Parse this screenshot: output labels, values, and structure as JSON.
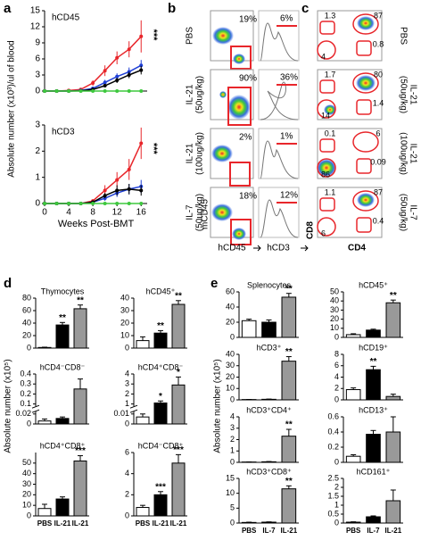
{
  "panel_labels": [
    "a",
    "b",
    "c",
    "d",
    "e"
  ],
  "chart_data": [
    {
      "type": "line",
      "title": "hCD45",
      "y_label": "Absolute number (x10³)/ul of blood",
      "annotation": "***",
      "x": [
        0,
        2,
        4,
        6,
        8,
        10,
        12,
        14,
        16
      ],
      "xlim": [
        0,
        17
      ],
      "ylim": [
        0,
        15
      ],
      "yticks": [
        0,
        3,
        6,
        9,
        12,
        15
      ],
      "series": [
        {
          "color": "#e8262b",
          "values": [
            0,
            0,
            0.1,
            0.3,
            1.5,
            3.8,
            6.2,
            7.8,
            10.2
          ],
          "errors": [
            0,
            0,
            0.1,
            0.2,
            0.5,
            1,
            1.2,
            1.5,
            3
          ]
        },
        {
          "color": "#1f3fd6",
          "values": [
            0,
            0,
            0,
            0.1,
            0.5,
            1.6,
            2.7,
            3.6,
            4.8
          ],
          "errors": [
            0,
            0,
            0,
            0.1,
            0.3,
            0.5,
            0.6,
            0.8,
            1
          ]
        },
        {
          "color": "#000000",
          "values": [
            0,
            0,
            0,
            0.05,
            0.3,
            1,
            2,
            3,
            3.9
          ],
          "errors": [
            0,
            0,
            0,
            0.05,
            0.2,
            0.3,
            0.5,
            0.6,
            0.8
          ]
        },
        {
          "color": "#3ec83e",
          "values": [
            0,
            0,
            0,
            0,
            0,
            0,
            0,
            0,
            0
          ]
        }
      ]
    },
    {
      "type": "line",
      "title": "hCD3",
      "x_label": "Weeks Post-BMT",
      "annotation": "***",
      "x": [
        0,
        2,
        4,
        6,
        8,
        10,
        12,
        14,
        16
      ],
      "xlim": [
        0,
        17
      ],
      "xticks": [
        0,
        4,
        8,
        12,
        16
      ],
      "ylim": [
        0,
        3
      ],
      "yticks": [
        0,
        1,
        2,
        3
      ],
      "series": [
        {
          "color": "#e8262b",
          "values": [
            0,
            0,
            0,
            0,
            0.1,
            0.5,
            0.9,
            1.3,
            2.3
          ],
          "errors": [
            0,
            0,
            0,
            0,
            0.05,
            0.2,
            0.3,
            0.4,
            0.6
          ]
        },
        {
          "color": "#1f3fd6",
          "values": [
            0,
            0,
            0,
            0,
            0.05,
            0.2,
            0.4,
            0.55,
            0.65
          ],
          "errors": [
            0,
            0,
            0,
            0,
            0.02,
            0.1,
            0.15,
            0.2,
            0.25
          ]
        },
        {
          "color": "#000000",
          "values": [
            0,
            0,
            0,
            0,
            0.05,
            0.3,
            0.5,
            0.55,
            0.5
          ],
          "errors": [
            0,
            0,
            0,
            0,
            0.02,
            0.1,
            0.2,
            0.2,
            0.2
          ]
        },
        {
          "color": "#3ec83e",
          "values": [
            0,
            0,
            0,
            0,
            0,
            0,
            0,
            0,
            0
          ]
        }
      ]
    },
    {
      "type": "bar",
      "title": "Thymocytes",
      "y_label": "Absolute number (x10⁵)",
      "values": [
        1,
        37,
        63
      ],
      "errors": [
        0.5,
        4,
        6
      ],
      "colors": [
        "#ffffff",
        "#000000",
        "#999999"
      ],
      "annotations": [
        null,
        "**",
        "**"
      ],
      "ylim": [
        0,
        80
      ],
      "yticks": [
        0,
        20,
        40,
        60,
        80
      ]
    },
    {
      "type": "bar",
      "title": "hCD45⁺",
      "values": [
        6,
        12,
        35
      ],
      "errors": [
        3,
        2,
        3
      ],
      "colors": [
        "#ffffff",
        "#000000",
        "#999999"
      ],
      "annotations": [
        null,
        "**",
        "**"
      ],
      "ylim": [
        0,
        40
      ],
      "yticks": [
        0,
        10,
        20,
        30,
        40
      ]
    },
    {
      "type": "bar",
      "title": "hCD4⁻CD8⁻",
      "values": [
        0.006,
        0.011,
        0.25
      ],
      "errors": [
        0.004,
        0.003,
        0.1
      ],
      "colors": [
        "#ffffff",
        "#000000",
        "#999999"
      ],
      "axis_break": true,
      "ylim": [
        0,
        0.4
      ],
      "yticks": [
        0,
        0.02,
        0.1,
        0.2,
        0.3,
        0.4
      ]
    },
    {
      "type": "bar",
      "title": "hCD4⁺CD8⁻",
      "values": [
        0.007,
        1.1,
        2.9
      ],
      "errors": [
        0.003,
        0.2,
        0.8
      ],
      "colors": [
        "#ffffff",
        "#000000",
        "#999999"
      ],
      "annotations": [
        null,
        "*",
        "*"
      ],
      "axis_break": true,
      "ylim": [
        0,
        4
      ],
      "yticks": [
        0,
        0.01,
        1,
        2,
        3,
        4
      ]
    },
    {
      "type": "bar",
      "title": "hCD4⁺CD8⁺",
      "categories": [
        "PBS",
        "IL-21",
        "IL-21"
      ],
      "values": [
        7,
        16,
        52
      ],
      "errors": [
        4,
        2,
        5
      ],
      "colors": [
        "#ffffff",
        "#000000",
        "#999999"
      ],
      "annotations": [
        null,
        null,
        "***"
      ],
      "ylim": [
        0,
        60
      ],
      "yticks": [
        0,
        10,
        20,
        30,
        40,
        50
      ]
    },
    {
      "type": "bar",
      "title": "hCD4⁻CD8⁺",
      "categories": [
        "PBS",
        "IL-21",
        "IL-21"
      ],
      "values": [
        0.8,
        2,
        5
      ],
      "errors": [
        0.2,
        0.3,
        0.8
      ],
      "colors": [
        "#ffffff",
        "#000000",
        "#999999"
      ],
      "annotations": [
        null,
        "***",
        "***"
      ],
      "ylim": [
        0,
        6
      ],
      "yticks": [
        0,
        2,
        4,
        6
      ]
    },
    {
      "type": "bar",
      "title": "Splenocytes",
      "y_label": "Absolute number (x10⁵)",
      "values": [
        22,
        20,
        53
      ],
      "errors": [
        2,
        3,
        5
      ],
      "colors": [
        "#ffffff",
        "#000000",
        "#999999"
      ],
      "annotations": [
        null,
        null,
        "**"
      ],
      "ylim": [
        0,
        60
      ],
      "yticks": [
        0,
        20,
        40,
        60
      ]
    },
    {
      "type": "bar",
      "title": "hCD45⁺",
      "values": [
        3,
        8,
        38
      ],
      "errors": [
        1,
        1,
        3
      ],
      "colors": [
        "#ffffff",
        "#000000",
        "#999999"
      ],
      "annotations": [
        null,
        null,
        "**"
      ],
      "ylim": [
        0,
        50
      ],
      "yticks": [
        0,
        10,
        20,
        30,
        40,
        50
      ]
    },
    {
      "type": "bar",
      "title": "hCD3⁺",
      "values": [
        0.3,
        0.5,
        34
      ],
      "errors": [
        0.1,
        0.2,
        4
      ],
      "colors": [
        "#ffffff",
        "#000000",
        "#999999"
      ],
      "annotations": [
        null,
        null,
        "**"
      ],
      "ylim": [
        0,
        40
      ],
      "yticks": [
        0,
        10,
        20,
        30,
        40
      ]
    },
    {
      "type": "bar",
      "title": "hCD19⁺",
      "values": [
        1.8,
        5.3,
        0.6
      ],
      "errors": [
        0.3,
        0.6,
        0.4
      ],
      "colors": [
        "#ffffff",
        "#000000",
        "#999999"
      ],
      "annotations": [
        null,
        "**",
        null
      ],
      "ylim": [
        0,
        8
      ],
      "yticks": [
        0,
        2,
        4,
        6,
        8
      ]
    },
    {
      "type": "bar",
      "title": "hCD3⁺CD4⁺",
      "values": [
        0.03,
        0.05,
        2.3
      ],
      "errors": [
        0.01,
        0.02,
        0.6
      ],
      "colors": [
        "#ffffff",
        "#000000",
        "#999999"
      ],
      "annotations": [
        null,
        null,
        "**"
      ],
      "ylim": [
        0,
        4
      ],
      "yticks": [
        0,
        1,
        2,
        3,
        4
      ]
    },
    {
      "type": "bar",
      "title": "hCD13⁺",
      "values": [
        0.08,
        0.37,
        0.4
      ],
      "errors": [
        0.02,
        0.05,
        0.2
      ],
      "colors": [
        "#ffffff",
        "#000000",
        "#999999"
      ],
      "ylim": [
        0,
        0.6
      ],
      "yticks": [
        0,
        0.2,
        0.4,
        0.6
      ]
    },
    {
      "type": "bar",
      "title": "hCD3⁺CD8⁺",
      "categories": [
        "PBS",
        "IL-7",
        "IL-21"
      ],
      "values": [
        0.2,
        0.3,
        11.5
      ],
      "errors": [
        0.1,
        0.1,
        1
      ],
      "colors": [
        "#ffffff",
        "#000000",
        "#999999"
      ],
      "annotations": [
        null,
        null,
        "**"
      ],
      "ylim": [
        0,
        15
      ],
      "yticks": [
        0,
        5,
        10,
        15
      ]
    },
    {
      "type": "bar",
      "title": "hCD161⁺",
      "categories": [
        "PBS",
        "IL-7",
        "IL-21"
      ],
      "values": [
        0.05,
        0.35,
        1.25
      ],
      "errors": [
        0.02,
        0.05,
        0.6
      ],
      "colors": [
        "#ffffff",
        "#000000",
        "#999999"
      ],
      "ylim": [
        0,
        2.5
      ],
      "yticks": [
        0,
        0.5,
        1,
        1.5,
        2,
        2.5
      ]
    }
  ],
  "flow_b": {
    "x_labels": [
      "hCD45",
      "hCD3"
    ],
    "y_label": "mCD45",
    "rows": [
      {
        "label": [
          "PBS"
        ],
        "hcd45": "19%",
        "hcd3": "6%"
      },
      {
        "label": [
          "IL-21",
          "(50ug/kg)"
        ],
        "hcd45": "90%",
        "hcd3": "36%"
      },
      {
        "label": [
          "IL-21",
          "(100ug/kg)"
        ],
        "hcd45": "2%",
        "hcd3": "1%"
      },
      {
        "label": [
          "IL-7",
          "(50ug/kg)"
        ],
        "hcd45": "18%",
        "hcd3": "12%"
      }
    ]
  },
  "flow_c": {
    "x_label": "CD4",
    "y_label": "CD8",
    "rows": [
      {
        "label": [
          "PBS"
        ],
        "quadrants": [
          "1.3",
          "87",
          "4",
          "0.8"
        ]
      },
      {
        "label": [
          "IL-21",
          "(50ug/kg)"
        ],
        "quadrants": [
          "1.7",
          "80",
          "14",
          "1.4"
        ]
      },
      {
        "label": [
          "IL-21",
          "(100ug/kg)"
        ],
        "quadrants": [
          "0.1",
          "6",
          "86",
          "0.09"
        ]
      },
      {
        "label": [
          "IL-7",
          "(50ug/kg)"
        ],
        "quadrants": [
          "1.1",
          "87",
          "6",
          "0.4"
        ]
      }
    ]
  }
}
